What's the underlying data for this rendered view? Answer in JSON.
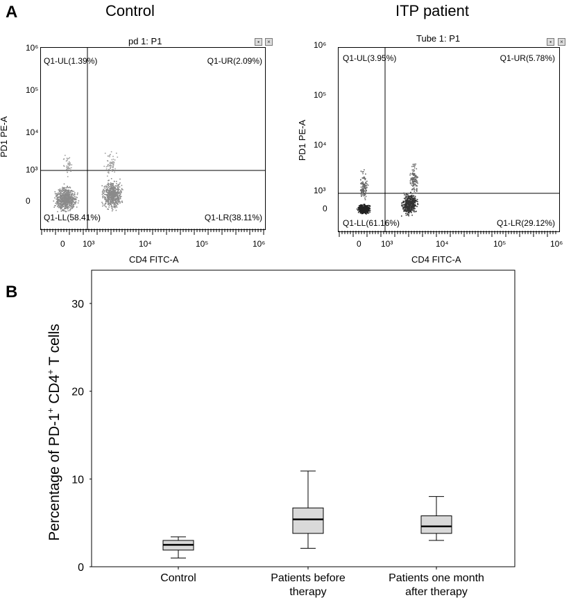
{
  "panel_a": {
    "letter": "A",
    "plots": [
      {
        "group": "Control",
        "title": "pd 1: P1",
        "xlabel": "CD4 FITC-A",
        "ylabel": "PD1 PE-A",
        "x_ticks": [
          "0",
          "10³",
          "10⁴",
          "10⁵",
          "10⁶"
        ],
        "y_ticks": [
          "10⁶",
          "10⁵",
          "10⁴",
          "10³",
          "0"
        ],
        "quadrants": {
          "UL": "Q1-UL(1.39%)",
          "UR": "Q1-UR(2.09%)",
          "LL": "Q1-LL(58.41%)",
          "LR": "Q1-LR(38.11%)"
        }
      },
      {
        "group": "ITP patient",
        "title": "Tube 1: P1",
        "xlabel": "CD4 FITC-A",
        "ylabel": "PD1 PE-A",
        "x_ticks": [
          "0",
          "10³",
          "10⁴",
          "10⁵",
          "10⁶"
        ],
        "y_ticks": [
          "10⁶",
          "10⁵",
          "10⁴",
          "10³",
          "0"
        ],
        "quadrants": {
          "UL": "Q1-UL(3.95%)",
          "UR": "Q1-UR(5.78%)",
          "LL": "Q1-LL(61.16%)",
          "LR": "Q1-LR(29.12%)"
        }
      }
    ]
  },
  "panel_b": {
    "letter": "B",
    "ylabel_main": "Percentage of PD-1",
    "ylabel_sup1": "+",
    "ylabel_mid": " CD4",
    "ylabel_sup2": "+",
    "ylabel_end": " T cells",
    "y_ticks": [
      "30",
      "20",
      "10",
      "0"
    ]
  },
  "chart_data": [
    {
      "type": "scatter",
      "title": "Control",
      "subtitle": "pd 1: P1",
      "xlabel": "CD4 FITC-A",
      "ylabel": "PD1 PE-A",
      "quadrant_percentages": {
        "Q1-UL": 1.39,
        "Q1-UR": 2.09,
        "Q1-LL": 58.41,
        "Q1-LR": 38.11
      }
    },
    {
      "type": "scatter",
      "title": "ITP patient",
      "subtitle": "Tube 1: P1",
      "xlabel": "CD4 FITC-A",
      "ylabel": "PD1 PE-A",
      "quadrant_percentages": {
        "Q1-UL": 3.95,
        "Q1-UR": 5.78,
        "Q1-LL": 61.16,
        "Q1-LR": 29.12
      }
    },
    {
      "type": "box",
      "ylabel": "Percentage of PD-1+ CD4+ T cells",
      "ylim": [
        0,
        30
      ],
      "yticks": [
        0,
        10,
        20,
        30
      ],
      "grid": false,
      "categories": [
        "Control",
        "Patients before therapy",
        "Patients one month after therapy"
      ],
      "category_lines": [
        [
          "Control"
        ],
        [
          "Patients before",
          "therapy"
        ],
        [
          "Patients one month",
          "after therapy"
        ]
      ],
      "boxes": [
        {
          "min": 1.0,
          "q1": 1.9,
          "median": 2.5,
          "q3": 3.0,
          "max": 3.4
        },
        {
          "min": 2.1,
          "q1": 3.8,
          "median": 5.4,
          "q3": 6.7,
          "max": 10.9
        },
        {
          "min": 3.0,
          "q1": 3.8,
          "median": 4.6,
          "q3": 5.8,
          "max": 8.0
        }
      ],
      "box_color": "#d9d9d9"
    }
  ]
}
